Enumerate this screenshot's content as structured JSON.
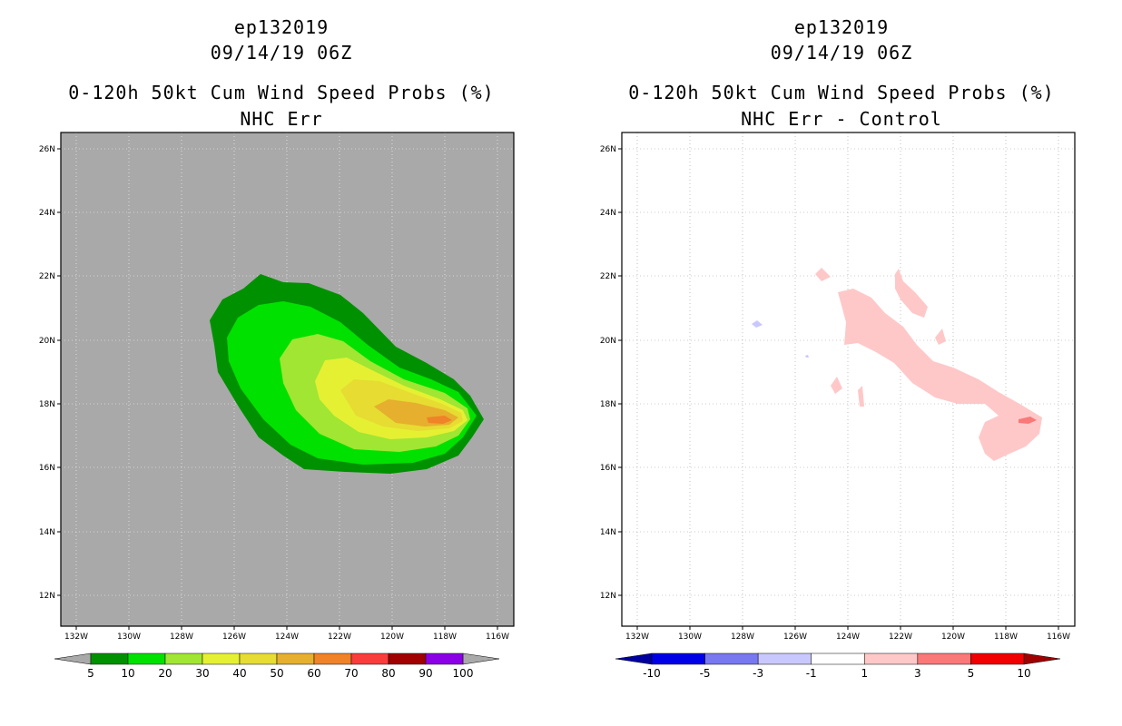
{
  "panels": [
    {
      "id": "left",
      "storm_id": "ep132019",
      "datetime": "09/14/19 06Z",
      "product": "0-120h 50kt Cum Wind Speed Probs (%)",
      "subtitle": "NHC Err",
      "background_color": "#a9a9a9",
      "lat_labels": [
        "26N",
        "24N",
        "22N",
        "20N",
        "18N",
        "16N",
        "14N",
        "12N"
      ],
      "lon_labels": [
        "132W",
        "130W",
        "128W",
        "126W",
        "124W",
        "122W",
        "120W",
        "118W",
        "116W"
      ],
      "colorbar": {
        "labels": [
          "5",
          "10",
          "20",
          "30",
          "40",
          "50",
          "60",
          "70",
          "80",
          "90",
          "100"
        ],
        "colors": [
          "#009100",
          "#00e100",
          "#a0e632",
          "#e6f032",
          "#e6dc32",
          "#e6af2d",
          "#f08228",
          "#fa3c3c",
          "#a00000",
          "#8c00e6"
        ],
        "under_color": "#a9a9a9",
        "over_color": "#a9a9a9"
      }
    },
    {
      "id": "right",
      "storm_id": "ep132019",
      "datetime": "09/14/19 06Z",
      "product": "0-120h 50kt Cum Wind Speed Probs (%)",
      "subtitle": "NHC Err - Control",
      "background_color": "#ffffff",
      "lat_labels": [
        "26N",
        "24N",
        "22N",
        "20N",
        "18N",
        "16N",
        "14N",
        "12N"
      ],
      "lon_labels": [
        "132W",
        "130W",
        "128W",
        "126W",
        "124W",
        "122W",
        "120W",
        "118W",
        "116W"
      ],
      "colorbar": {
        "labels": [
          "-10",
          "-5",
          "-3",
          "-1",
          "1",
          "3",
          "5",
          "10"
        ],
        "colors": [
          "#0000e6",
          "#7878f0",
          "#c8c8ff",
          "#ffffff",
          "#ffc8c8",
          "#fa7878",
          "#f00000"
        ],
        "under_color": "#0000a0",
        "over_color": "#a00000"
      }
    }
  ]
}
